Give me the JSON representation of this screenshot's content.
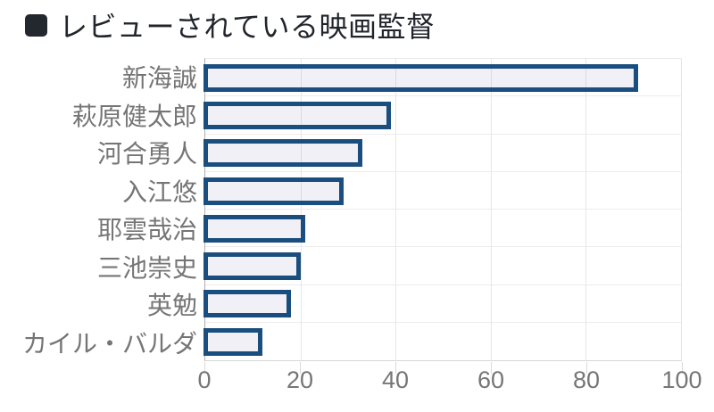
{
  "page": {
    "background": "#ffffff"
  },
  "title": {
    "text": "レビューされている映画監督",
    "color": "#22262c"
  },
  "icons": {
    "title_marker": "black-rounded-square-icon"
  },
  "chart_data": {
    "type": "bar",
    "orientation": "horizontal",
    "title": "レビューされている映画監督",
    "categories": [
      "新海誠",
      "萩原健太郎",
      "河合勇人",
      "入江悠",
      "耶雲哉治",
      "三池崇史",
      "英勉",
      "カイル・バルダ"
    ],
    "values": [
      91,
      39,
      33,
      29,
      21,
      20,
      18,
      12
    ],
    "xlabel": "",
    "ylabel": "",
    "xlim": [
      0,
      100
    ],
    "x_tick_labels": [
      "0",
      "20",
      "40",
      "60",
      "80",
      "100"
    ],
    "x_tick_values": [
      0,
      20,
      40,
      60,
      80,
      100
    ],
    "grid": true,
    "legend_position": "none",
    "bar_border_color": "#1a4e7e",
    "bar_fill_color": "#f0f0f5",
    "axis_label_color": "#757575",
    "gridline_color": "#e7e7e7"
  }
}
